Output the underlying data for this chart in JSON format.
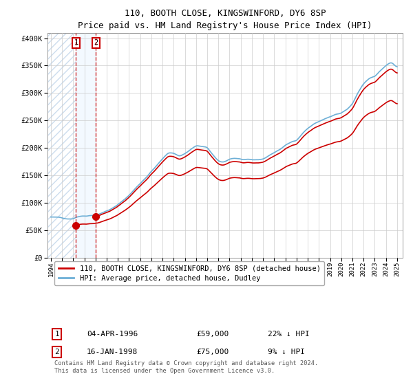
{
  "title": "110, BOOTH CLOSE, KINGSWINFORD, DY6 8SP",
  "subtitle": "Price paid vs. HM Land Registry's House Price Index (HPI)",
  "legend_line1": "110, BOOTH CLOSE, KINGSWINFORD, DY6 8SP (detached house)",
  "legend_line2": "HPI: Average price, detached house, Dudley",
  "footnote": "Contains HM Land Registry data © Crown copyright and database right 2024.\nThis data is licensed under the Open Government Licence v3.0.",
  "transaction1_date": "04-APR-1996",
  "transaction1_price": "£59,000",
  "transaction1_hpi": "22% ↓ HPI",
  "transaction2_date": "16-JAN-1998",
  "transaction2_price": "£75,000",
  "transaction2_hpi": "9% ↓ HPI",
  "hpi_color": "#6dafd6",
  "price_color": "#cc0000",
  "marker_color": "#cc0000",
  "dashed_line_color": "#cc0000",
  "shade_color": "#ddeeff",
  "hatch_color": "#bbccdd",
  "ylim": [
    0,
    410000
  ],
  "yticks": [
    0,
    50000,
    100000,
    150000,
    200000,
    250000,
    300000,
    350000,
    400000
  ],
  "ytick_labels": [
    "£0",
    "£50K",
    "£100K",
    "£150K",
    "£200K",
    "£250K",
    "£300K",
    "£350K",
    "£400K"
  ],
  "transaction1_x": 1996.25,
  "transaction2_x": 1998.04,
  "price_values": [
    59000,
    75000
  ],
  "xlim": [
    1993.7,
    2025.5
  ],
  "xticks": [
    1994,
    1995,
    1996,
    1997,
    1998,
    1999,
    2000,
    2001,
    2002,
    2003,
    2004,
    2005,
    2006,
    2007,
    2008,
    2009,
    2010,
    2011,
    2012,
    2013,
    2014,
    2015,
    2016,
    2017,
    2018,
    2019,
    2020,
    2021,
    2022,
    2023,
    2024,
    2025
  ]
}
